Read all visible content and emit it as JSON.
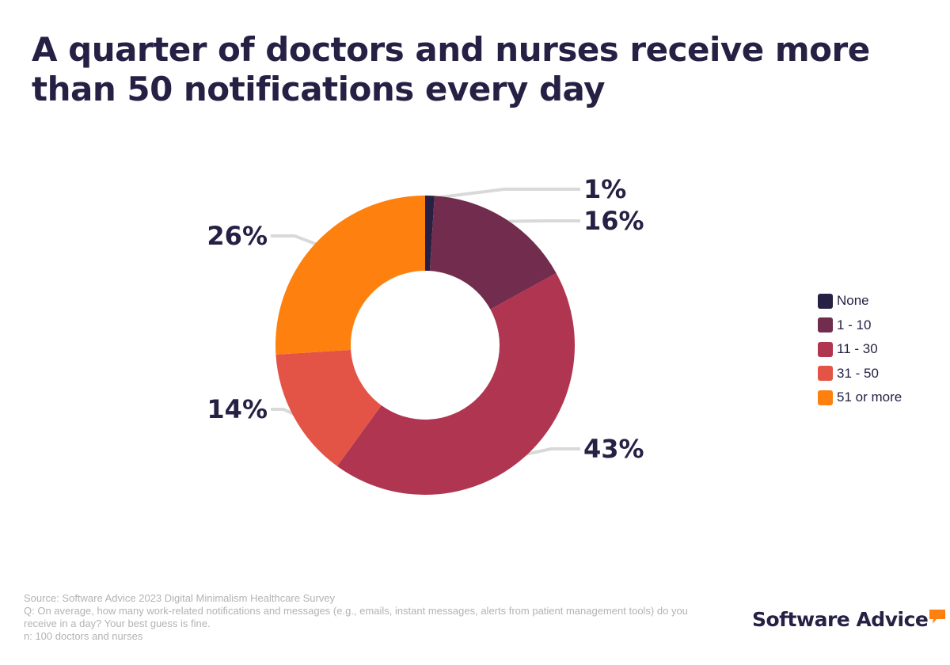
{
  "title": "A quarter of doctors and nurses receive more than 50 notifications every day",
  "chart_data": {
    "type": "pie",
    "donut": true,
    "slices": [
      {
        "name": "None",
        "value": 1,
        "label": "1%",
        "color": "#262144"
      },
      {
        "name": "1 - 10",
        "value": 16,
        "label": "16%",
        "color": "#722c4e"
      },
      {
        "name": "11 - 30",
        "value": 43,
        "label": "43%",
        "color": "#b03550"
      },
      {
        "name": "31 - 50",
        "value": 14,
        "label": "14%",
        "color": "#e35446"
      },
      {
        "name": "51 or more",
        "value": 26,
        "label": "26%",
        "color": "#fe800f"
      }
    ],
    "legend_position": "right"
  },
  "footnote": {
    "source": "Source: Software Advice 2023 Digital Minimalism Healthcare Survey",
    "question": "Q: On average, how many work-related notifications and messages (e.g., emails, instant messages, alerts from patient management tools) do you receive in a day? Your best guess is fine.",
    "sample": "n: 100 doctors and nurses"
  },
  "brand": {
    "name": "Software Advice",
    "color": "#262144",
    "accent": "#fe800f"
  }
}
